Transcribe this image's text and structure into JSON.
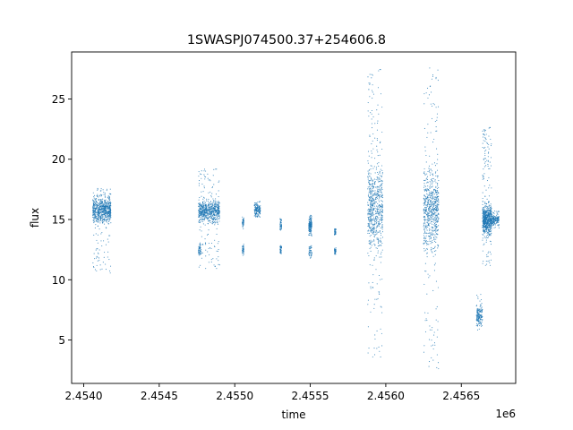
{
  "chart_data": {
    "type": "scatter",
    "title": "1SWASPJ074500.37+254606.8",
    "xlabel": "time",
    "ylabel": "flux",
    "x_offset_label": "1e6",
    "xlim": [
      2.45392,
      2.45686
    ],
    "ylim": [
      1.4,
      28.9
    ],
    "x_ticks": [
      {
        "value": 2.454,
        "label": "2.4540"
      },
      {
        "value": 2.4545,
        "label": "2.4545"
      },
      {
        "value": 2.455,
        "label": "2.4550"
      },
      {
        "value": 2.4555,
        "label": "2.4555"
      },
      {
        "value": 2.456,
        "label": "2.4560"
      },
      {
        "value": 2.4565,
        "label": "2.4565"
      }
    ],
    "y_ticks": [
      {
        "value": 5,
        "label": "5"
      },
      {
        "value": 10,
        "label": "10"
      },
      {
        "value": 15,
        "label": "15"
      },
      {
        "value": 20,
        "label": "20"
      },
      {
        "value": 25,
        "label": "25"
      }
    ],
    "grid": false,
    "marker_color": "#1f77b4",
    "clusters": [
      {
        "x_min": 2.45406,
        "x_max": 2.45418,
        "y_center": 15.8,
        "y_spread": 0.7,
        "y_min": 10.5,
        "y_max": 17.8,
        "density": "high"
      },
      {
        "x_min": 2.45476,
        "x_max": 2.4549,
        "y_center": 15.7,
        "y_spread": 0.6,
        "y_min": 10.8,
        "y_max": 19.3,
        "density": "high"
      },
      {
        "x_min": 2.45476,
        "x_max": 2.45478,
        "y_center": 12.5,
        "y_spread": 0.4,
        "y_min": 12.0,
        "y_max": 13.0,
        "density": "low"
      },
      {
        "x_min": 2.45513,
        "x_max": 2.45517,
        "y_center": 15.8,
        "y_spread": 0.4,
        "y_min": 15.2,
        "y_max": 16.5,
        "density": "medium"
      },
      {
        "x_min": 2.45505,
        "x_max": 2.45506,
        "y_center": 14.8,
        "y_spread": 0.3,
        "y_min": 14.2,
        "y_max": 15.3,
        "density": "low"
      },
      {
        "x_min": 2.45505,
        "x_max": 2.45506,
        "y_center": 12.5,
        "y_spread": 0.3,
        "y_min": 12.0,
        "y_max": 13.0,
        "density": "low"
      },
      {
        "x_min": 2.4553,
        "x_max": 2.45531,
        "y_center": 14.6,
        "y_spread": 0.3,
        "y_min": 14.0,
        "y_max": 15.2,
        "density": "low"
      },
      {
        "x_min": 2.4553,
        "x_max": 2.45531,
        "y_center": 12.5,
        "y_spread": 0.3,
        "y_min": 12.1,
        "y_max": 12.9,
        "density": "low"
      },
      {
        "x_min": 2.45549,
        "x_max": 2.45551,
        "y_center": 14.5,
        "y_spread": 0.4,
        "y_min": 13.6,
        "y_max": 15.4,
        "density": "medium"
      },
      {
        "x_min": 2.45549,
        "x_max": 2.45551,
        "y_center": 12.3,
        "y_spread": 0.3,
        "y_min": 11.7,
        "y_max": 12.9,
        "density": "low"
      },
      {
        "x_min": 2.45566,
        "x_max": 2.45567,
        "y_center": 14.0,
        "y_spread": 0.2,
        "y_min": 13.7,
        "y_max": 14.3,
        "density": "low"
      },
      {
        "x_min": 2.45566,
        "x_max": 2.45567,
        "y_center": 12.4,
        "y_spread": 0.2,
        "y_min": 12.1,
        "y_max": 12.7,
        "density": "low"
      },
      {
        "x_min": 2.45588,
        "x_max": 2.45598,
        "y_center": 16.0,
        "y_spread": 2.5,
        "y_min": 3.2,
        "y_max": 27.8,
        "density": "high"
      },
      {
        "x_min": 2.45625,
        "x_max": 2.45635,
        "y_center": 15.8,
        "y_spread": 2.2,
        "y_min": 2.6,
        "y_max": 27.6,
        "density": "high"
      },
      {
        "x_min": 2.4566,
        "x_max": 2.45664,
        "y_center": 7.0,
        "y_spread": 0.6,
        "y_min": 5.5,
        "y_max": 9.0,
        "density": "medium"
      },
      {
        "x_min": 2.45664,
        "x_max": 2.4567,
        "y_center": 15.0,
        "y_spread": 0.8,
        "y_min": 11.0,
        "y_max": 22.8,
        "density": "high"
      },
      {
        "x_min": 2.4567,
        "x_max": 2.45675,
        "y_center": 15.0,
        "y_spread": 0.3,
        "y_min": 14.3,
        "y_max": 15.7,
        "density": "medium"
      }
    ]
  }
}
